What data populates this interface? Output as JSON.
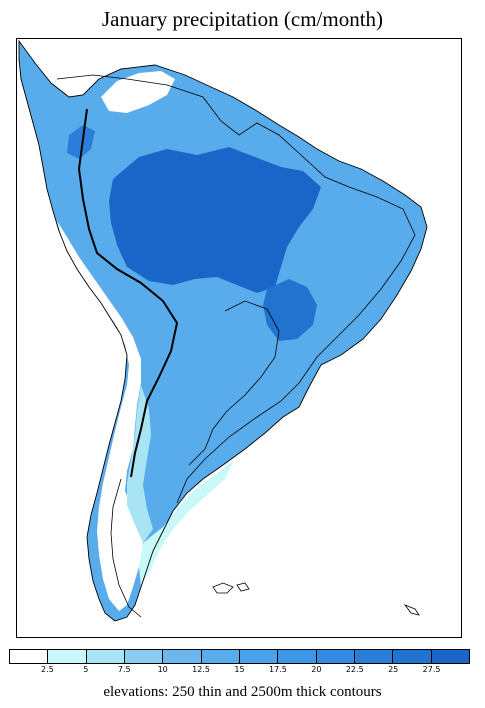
{
  "title": "January precipitation (cm/month)",
  "footer": "elevations: 250 thin and 2500m thick contours",
  "legend": {
    "tick_labels": [
      "2.5",
      "5",
      "7.5",
      "10",
      "12.5",
      "15",
      "17.5",
      "20",
      "22.5",
      "25",
      "27.5"
    ],
    "colors": [
      "#ffffff",
      "#c8f8f8",
      "#a8e4f4",
      "#88ccf0",
      "#6cb8ec",
      "#58acec",
      "#4aa2ea",
      "#3e96e6",
      "#348ae0",
      "#2a7ed8",
      "#2272d0",
      "#1a66c8"
    ]
  },
  "colors": {
    "land_base": "#58acec",
    "dry_coast": "#ffffff",
    "wettest": "#1a66c8",
    "contour": "#000000"
  }
}
